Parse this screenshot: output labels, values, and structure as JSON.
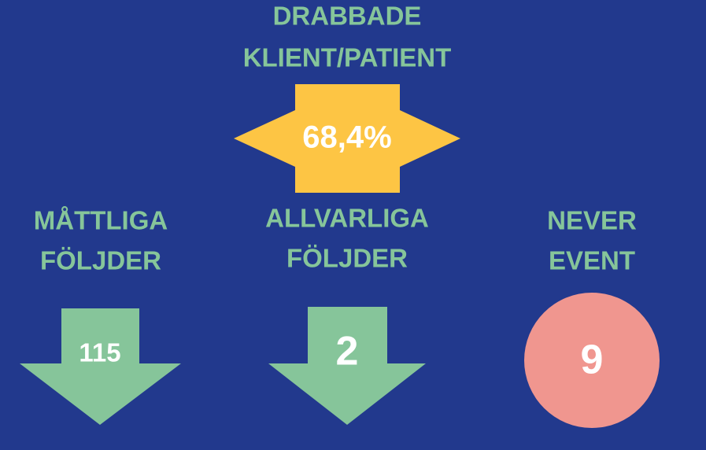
{
  "header": {
    "title": [
      "DRABBADE",
      "KLIENT/PATIENT"
    ],
    "value": "68,4%"
  },
  "items": [
    {
      "label": [
        "MÅTTLIGA",
        "FÖLJDER"
      ],
      "value": "115"
    },
    {
      "label": [
        "ALLVARLIGA",
        "FÖLJDER"
      ],
      "value": "2"
    },
    {
      "label": [
        "NEVER",
        "EVENT"
      ],
      "value": "9"
    }
  ]
}
